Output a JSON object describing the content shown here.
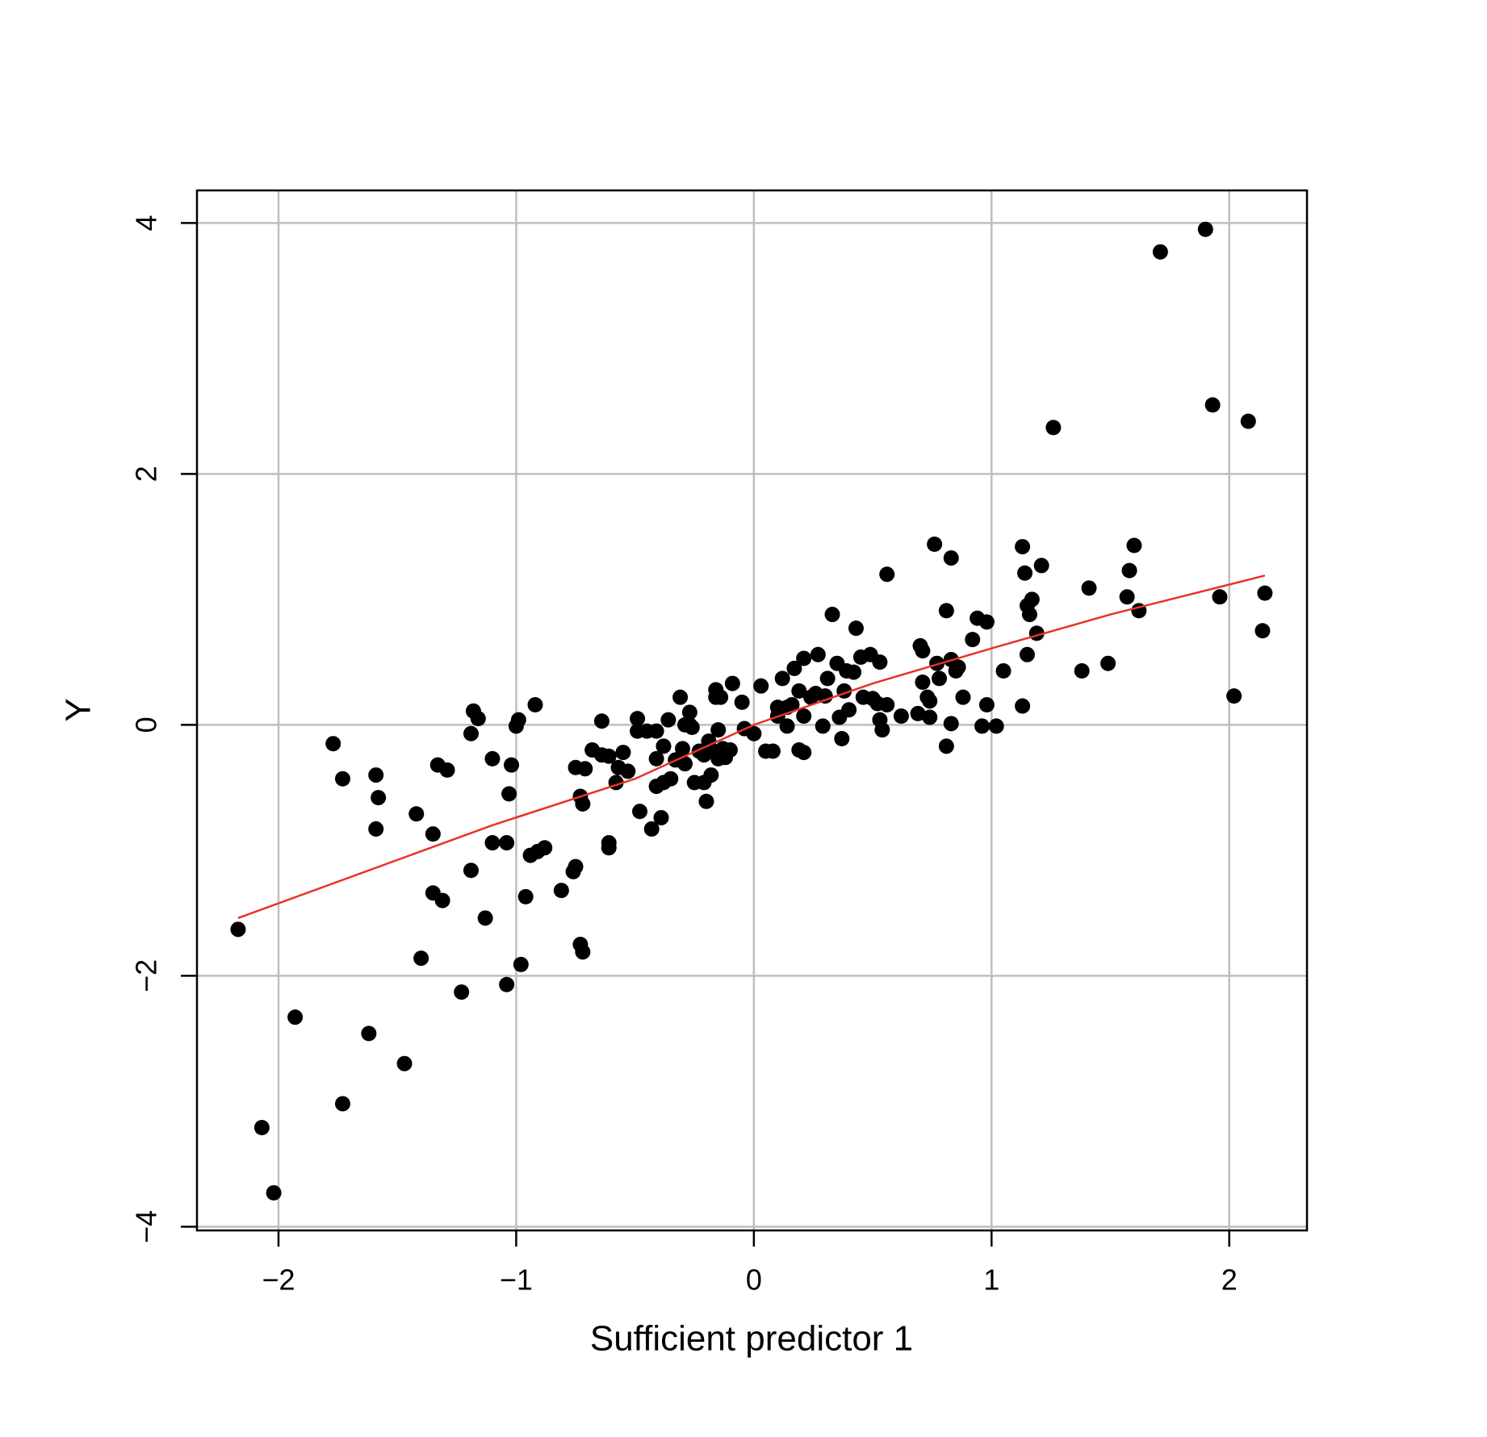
{
  "chart_data": {
    "type": "scatter",
    "x_label": "Sufficient predictor  1",
    "y_label": "Y",
    "xlim": [
      -2.343,
      2.327
    ],
    "ylim": [
      -4.03,
      4.26
    ],
    "xticks": [
      {
        "value": -2,
        "label": "−2"
      },
      {
        "value": -1,
        "label": "−1"
      },
      0,
      1,
      2
    ],
    "yticks": [
      {
        "value": -4,
        "label": "−4"
      },
      {
        "value": -2,
        "label": "−2"
      },
      0,
      2,
      4
    ],
    "grid": true,
    "series": [
      {
        "type": "scatter",
        "color": "#000000",
        "x": [
          -2.17,
          -2.07,
          -2.02,
          -1.93,
          -1.77,
          -1.73,
          -1.73,
          -1.62,
          -1.59,
          -1.58,
          -1.59,
          -1.47,
          -1.42,
          -1.4,
          -1.35,
          -1.35,
          -1.33,
          -1.31,
          -1.29,
          -1.23,
          -1.19,
          -1.18,
          -1.19,
          -1.16,
          -1.13,
          -1.1,
          -1.1,
          -1.04,
          -1.04,
          -1.03,
          -1.02,
          -1.0,
          -0.99,
          -0.98,
          -0.96,
          -0.94,
          -0.92,
          -0.91,
          -0.88,
          -0.81,
          -0.76,
          -0.75,
          -0.75,
          -0.73,
          -0.72,
          -0.73,
          -0.72,
          -0.71,
          -0.68,
          -0.64,
          -0.64,
          -0.61,
          -0.61,
          -0.61,
          -0.58,
          -0.57,
          -0.55,
          -0.53,
          -0.49,
          -0.48,
          -0.49,
          -0.45,
          -0.43,
          -0.41,
          -0.41,
          -0.41,
          -0.39,
          -0.38,
          -0.38,
          -0.36,
          -0.35,
          -0.33,
          -0.31,
          -0.3,
          -0.29,
          -0.29,
          -0.27,
          -0.27,
          -0.26,
          -0.25,
          -0.23,
          -0.21,
          -0.21,
          -0.2,
          -0.19,
          -0.18,
          -0.17,
          -0.16,
          -0.16,
          -0.15,
          -0.15,
          -0.14,
          -0.13,
          -0.12,
          -0.11,
          -0.1,
          -0.09,
          -0.05,
          -0.04,
          0.0,
          0.03,
          0.05,
          0.08,
          0.1,
          0.1,
          0.12,
          0.14,
          0.14,
          0.16,
          0.17,
          0.19,
          0.19,
          0.21,
          0.21,
          0.21,
          0.24,
          0.26,
          0.27,
          0.29,
          0.3,
          0.31,
          0.33,
          0.35,
          0.36,
          0.37,
          0.38,
          0.39,
          0.4,
          0.42,
          0.43,
          0.45,
          0.46,
          0.49,
          0.5,
          0.52,
          0.53,
          0.53,
          0.54,
          0.56,
          0.56,
          0.62,
          0.69,
          0.7,
          0.71,
          0.71,
          0.73,
          0.74,
          0.74,
          0.76,
          0.77,
          0.78,
          0.81,
          0.81,
          0.83,
          0.83,
          0.83,
          0.85,
          0.86,
          0.88,
          0.92,
          0.94,
          0.96,
          0.98,
          0.98,
          1.02,
          1.05,
          1.13,
          1.13,
          1.14,
          1.15,
          1.15,
          1.16,
          1.17,
          1.19,
          1.21,
          1.26,
          1.38,
          1.41,
          1.49,
          1.57,
          1.58,
          1.6,
          1.62,
          1.71,
          1.9,
          1.93,
          1.96,
          2.02,
          2.08,
          2.14,
          2.15
        ],
        "values": [
          -1.63,
          -3.21,
          -3.73,
          -2.33,
          -0.15,
          -0.43,
          -3.02,
          -2.46,
          -0.4,
          -0.58,
          -0.83,
          -2.7,
          -0.71,
          -1.86,
          -0.87,
          -1.34,
          -0.32,
          -1.4,
          -0.36,
          -2.13,
          -0.07,
          0.11,
          -1.16,
          0.05,
          -1.54,
          -0.94,
          -0.27,
          -2.07,
          -0.94,
          -0.55,
          -0.32,
          -0.01,
          0.04,
          -1.91,
          -1.37,
          -1.04,
          0.16,
          -1.01,
          -0.98,
          -1.32,
          -1.17,
          -1.13,
          -0.34,
          -0.57,
          -0.63,
          -1.75,
          -1.81,
          -0.35,
          -0.2,
          0.03,
          -0.24,
          -0.25,
          -0.94,
          -0.98,
          -0.46,
          -0.34,
          -0.22,
          -0.37,
          0.05,
          -0.69,
          -0.05,
          -0.05,
          -0.83,
          -0.05,
          -0.27,
          -0.49,
          -0.74,
          -0.46,
          -0.17,
          0.04,
          -0.43,
          -0.28,
          0.22,
          -0.19,
          -0.31,
          0.0,
          0.0,
          0.1,
          -0.02,
          -0.46,
          -0.21,
          -0.46,
          -0.24,
          -0.61,
          -0.13,
          -0.4,
          -0.21,
          0.28,
          0.22,
          -0.04,
          -0.27,
          0.22,
          -0.19,
          -0.26,
          -0.21,
          -0.2,
          0.33,
          0.18,
          -0.03,
          -0.07,
          0.31,
          -0.21,
          -0.21,
          0.14,
          0.07,
          0.37,
          -0.01,
          0.14,
          0.16,
          0.45,
          0.27,
          -0.2,
          -0.22,
          0.53,
          0.07,
          0.22,
          0.25,
          0.56,
          -0.01,
          0.23,
          0.37,
          0.88,
          0.49,
          0.06,
          -0.11,
          0.27,
          0.43,
          0.12,
          0.42,
          0.77,
          0.54,
          0.22,
          0.56,
          0.21,
          0.17,
          0.5,
          0.04,
          -0.04,
          0.16,
          1.2,
          0.07,
          0.09,
          0.63,
          0.59,
          0.34,
          0.22,
          0.06,
          0.19,
          1.44,
          0.49,
          0.37,
          0.91,
          -0.17,
          0.52,
          0.01,
          1.33,
          0.43,
          0.46,
          0.22,
          0.68,
          0.85,
          -0.01,
          0.16,
          0.82,
          -0.01,
          0.43,
          0.15,
          1.42,
          1.21,
          0.95,
          0.56,
          0.88,
          1.0,
          0.73,
          1.27,
          2.37,
          0.43,
          1.09,
          0.49,
          1.02,
          1.23,
          1.43,
          0.91,
          3.77,
          3.95,
          2.55,
          1.02,
          0.23,
          2.42,
          0.75,
          1.05
        ]
      },
      {
        "type": "line",
        "color": "#e8322a",
        "x": [
          -2.17,
          -1.1,
          -0.5,
          0,
          0.5,
          1,
          1.5,
          2.15
        ],
        "values": [
          -1.54,
          -0.8,
          -0.43,
          0,
          0.33,
          0.61,
          0.88,
          1.19
        ]
      }
    ]
  }
}
